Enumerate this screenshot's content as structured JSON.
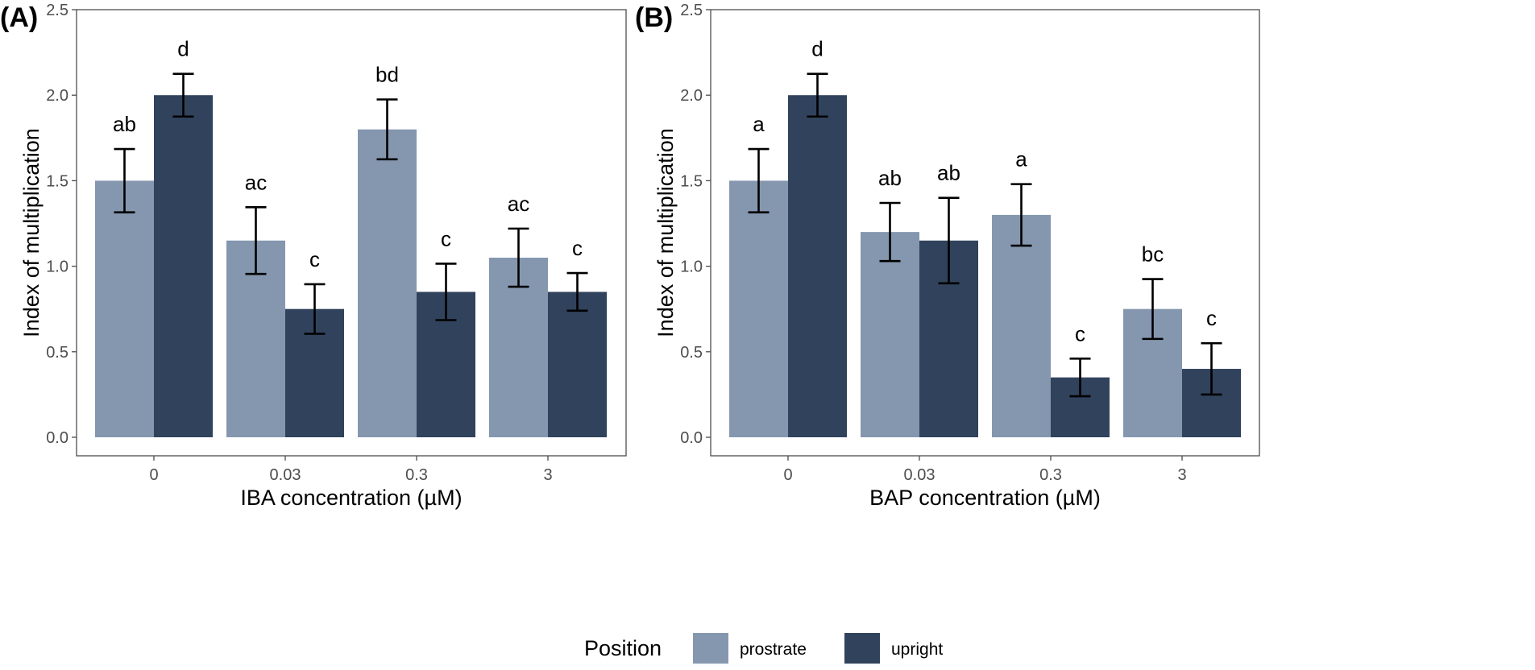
{
  "colors": {
    "prostrate": "#8597af",
    "upright": "#31425c",
    "panel_border": "#4d4d4d",
    "tick": "#4d4d4d"
  },
  "legend": {
    "title": "Position",
    "entries": [
      {
        "name": "prostrate",
        "color": "#8597af"
      },
      {
        "name": "upright",
        "color": "#31425c"
      }
    ]
  },
  "chart_data": [
    {
      "type": "bar",
      "panel_label": "(A)",
      "xlabel": "IBA concentration (µM)",
      "ylabel": "Index of multiplication",
      "ylim": [
        0,
        2.5
      ],
      "yticks": [
        "0.0",
        "0.5",
        "1.0",
        "1.5",
        "2.0",
        "2.5"
      ],
      "categories": [
        "0",
        "0.03",
        "0.3",
        "3"
      ],
      "series": [
        {
          "name": "prostrate",
          "values": [
            1.5,
            1.15,
            1.8,
            1.05
          ],
          "errors": [
            0.185,
            0.195,
            0.175,
            0.17
          ],
          "letters": [
            "ab",
            "ac",
            "bd",
            "ac"
          ]
        },
        {
          "name": "upright",
          "values": [
            2.0,
            0.75,
            0.85,
            0.85
          ],
          "errors": [
            0.125,
            0.145,
            0.165,
            0.11
          ],
          "letters": [
            "d",
            "c",
            "c",
            "c"
          ]
        }
      ]
    },
    {
      "type": "bar",
      "panel_label": "(B)",
      "xlabel": "BAP concentration (µM)",
      "ylabel": "Index of multiplication",
      "ylim": [
        0,
        2.5
      ],
      "yticks": [
        "0.0",
        "0.5",
        "1.0",
        "1.5",
        "2.0",
        "2.5"
      ],
      "categories": [
        "0",
        "0.03",
        "0.3",
        "3"
      ],
      "series": [
        {
          "name": "prostrate",
          "values": [
            1.5,
            1.2,
            1.3,
            0.75
          ],
          "errors": [
            0.185,
            0.17,
            0.18,
            0.175
          ],
          "letters": [
            "a",
            "ab",
            "a",
            "bc"
          ]
        },
        {
          "name": "upright",
          "values": [
            2.0,
            1.15,
            0.35,
            0.4
          ],
          "errors": [
            0.125,
            0.25,
            0.11,
            0.15
          ],
          "letters": [
            "d",
            "ab",
            "c",
            "c"
          ]
        }
      ]
    }
  ]
}
